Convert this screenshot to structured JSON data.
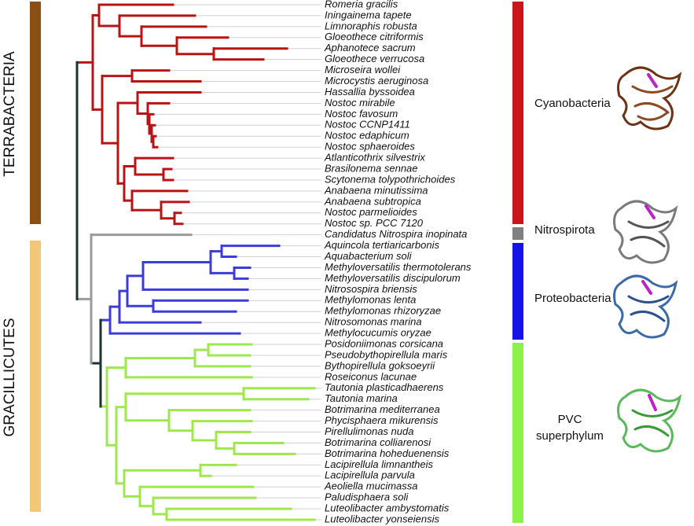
{
  "left_labels": [
    "TERRABACTERIA",
    "GRACILLICUTES"
  ],
  "taxa": [
    "Romeria gracilis",
    "Iningainema tapete",
    "Limnoraphis robusta",
    "Gloeothece citriformis",
    "Aphanotece sacrum",
    "Gloeothece verrucosa",
    "Microseira wollei",
    "Microcystis aeruginosa",
    "Hassallia byssoidea",
    "Nostoc mirabile",
    "Nostoc favosum",
    "Nostoc CCNP1411",
    "Nostoc edaphicum",
    "Nostoc sphaeroides",
    "Atlanticothrix silvestrix",
    "Brasilonema sennae",
    "Scytonema tolypothrichoides",
    "Anabaena minutissima",
    "Anabaena subtropica",
    "Nostoc parmelioides",
    "Nostoc sp. PCC 7120",
    "Candidatus Nitrospira inopinata",
    "Aquincola tertiaricarbonis",
    "Aquabacterium soli",
    "Methyloversatilis thermotolerans",
    "Methyloversatilis discipulorum",
    "Nitrosospira briensis",
    "Methylomonas lenta",
    "Methylomonas rhizoryzae",
    "Nitrosomonas marina",
    "Methylocucumis oryzae",
    "Posidoniimonas corsicana",
    "Pseudobythopirellula maris",
    "Bythopirellula goksoeyrii",
    "Roseiconus lacunae",
    "Tautonia plasticadhaerens",
    "Tautonia marina",
    "Botrimarina mediterranea",
    "Phycisphaera mikurensis",
    "Pirellulimonas nuda",
    "Botrimarina colliarenosi",
    "Botrimarina hoheduenensis",
    "Lacipirellula limnantheis",
    "Lacipirellula parvula",
    "Aeoliella mucimassa",
    "Paludisphaera soli",
    "Luteolibacter ambystomatis",
    "Luteolibacter yonseiensis"
  ],
  "groups": [
    "Cyanobacteria",
    "Nitrospirota",
    "Proteobacteria",
    [
      "PVC",
      "superphylum"
    ]
  ]
}
